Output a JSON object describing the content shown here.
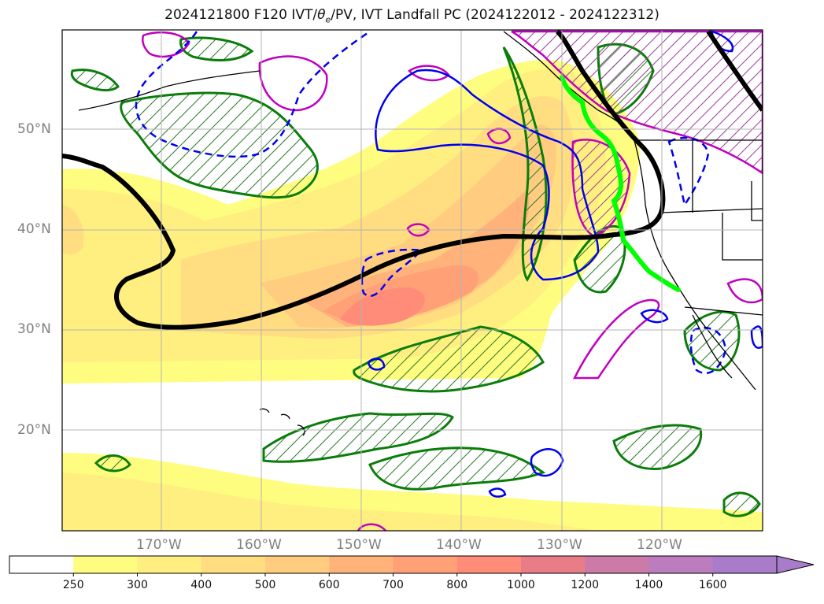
{
  "title": {
    "run": "2024121800 F120 IVT/",
    "theta": "θ",
    "theta_sub": "e",
    "rest": "/PV, IVT Landfall PC (2024122012 - 2024122312)"
  },
  "axes": {
    "lat_labels": [
      "50°N",
      "40°N",
      "30°N",
      "20°N"
    ],
    "lon_labels": [
      "170°W",
      "160°W",
      "150°W",
      "140°W",
      "130°W",
      "120°W"
    ]
  },
  "colorbar": {
    "ticks": [
      "250",
      "300",
      "400",
      "500",
      "600",
      "700",
      "800",
      "1000",
      "1200",
      "1400",
      "1600"
    ],
    "colors": [
      "#ffffff",
      "#fffd7f",
      "#ffee80",
      "#ffdd80",
      "#ffcc80",
      "#ffb37a",
      "#ffa077",
      "#ff8c78",
      "#e87d88",
      "#cc7aa8",
      "#bb7dbd",
      "#a87cc8",
      "#a87cc8"
    ],
    "extend": "max"
  },
  "legend_colors": {
    "ivt_contour": "#000000",
    "pv_contour": "#0000ff",
    "theta_e_contour": "#c000c0",
    "hatch_region": "#008000",
    "landfall_track": "#00ff00"
  }
}
